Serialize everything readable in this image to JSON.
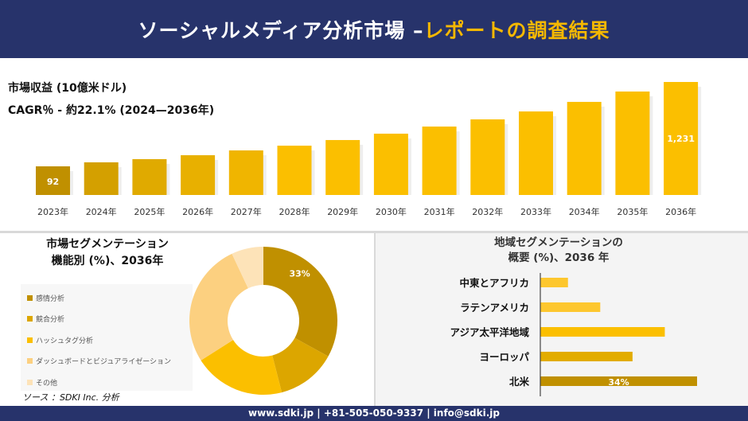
{
  "header": {
    "title_main": "ソーシャルメディア分析市場 –",
    "title_accent": "レポートの調査結果"
  },
  "colors": {
    "navy": "#27336b",
    "accent": "#f5b800"
  },
  "summary": {
    "revenue_label": "市場収益 (10億米ドル)",
    "cagr_label": "CAGR％ - 約22.1% (2024—2036年)"
  },
  "chart_data": [
    {
      "type": "bar",
      "categories": [
        "2023年",
        "2024年",
        "2025年",
        "2026年",
        "2027年",
        "2028年",
        "2029年",
        "2030年",
        "2031年",
        "2032年",
        "2033年",
        "2034年",
        "2035年",
        "2036年"
      ],
      "values": [
        92,
        146,
        189,
        242,
        307,
        371,
        447,
        533,
        629,
        726,
        833,
        962,
        1102,
        1231
      ],
      "data_labels": {
        "0": "92",
        "13": "1,231"
      }
    },
    {
      "type": "pie",
      "title_lines": [
        "市場セグメンテーション",
        "機能別 (%)、2036年"
      ],
      "categories": [
        "感情分析",
        "競合分析",
        "ハッシュタグ分析",
        "ダッシュボードとビジュアライゼーション",
        "その他"
      ],
      "values": [
        33,
        13,
        20,
        27,
        7
      ],
      "colors": [
        "#c09000",
        "#dca600",
        "#fbbf00",
        "#fcd080",
        "#fde3b8"
      ],
      "data_labels": {
        "0": "33%"
      },
      "legend": "left"
    },
    {
      "type": "bar",
      "orientation": "horizontal",
      "title_lines": [
        "地域セグメンテーションの",
        "概要 (%)、2036 年"
      ],
      "categories": [
        "中東とアフリカ",
        "ラテンアメリカ",
        "アジア太平洋地域",
        "ヨーロッパ",
        "北米"
      ],
      "values": [
        6,
        13,
        27,
        20,
        34
      ],
      "colors": [
        "#fdc72e",
        "#fdc72e",
        "#fbbf00",
        "#e2ac00",
        "#c09000"
      ],
      "data_labels": {
        "4": "34%"
      }
    }
  ],
  "source": "ソース ：SDKI Inc. 分析",
  "footer": "www.sdki.jp | +81-505-050-9337 | info@sdki.jp"
}
